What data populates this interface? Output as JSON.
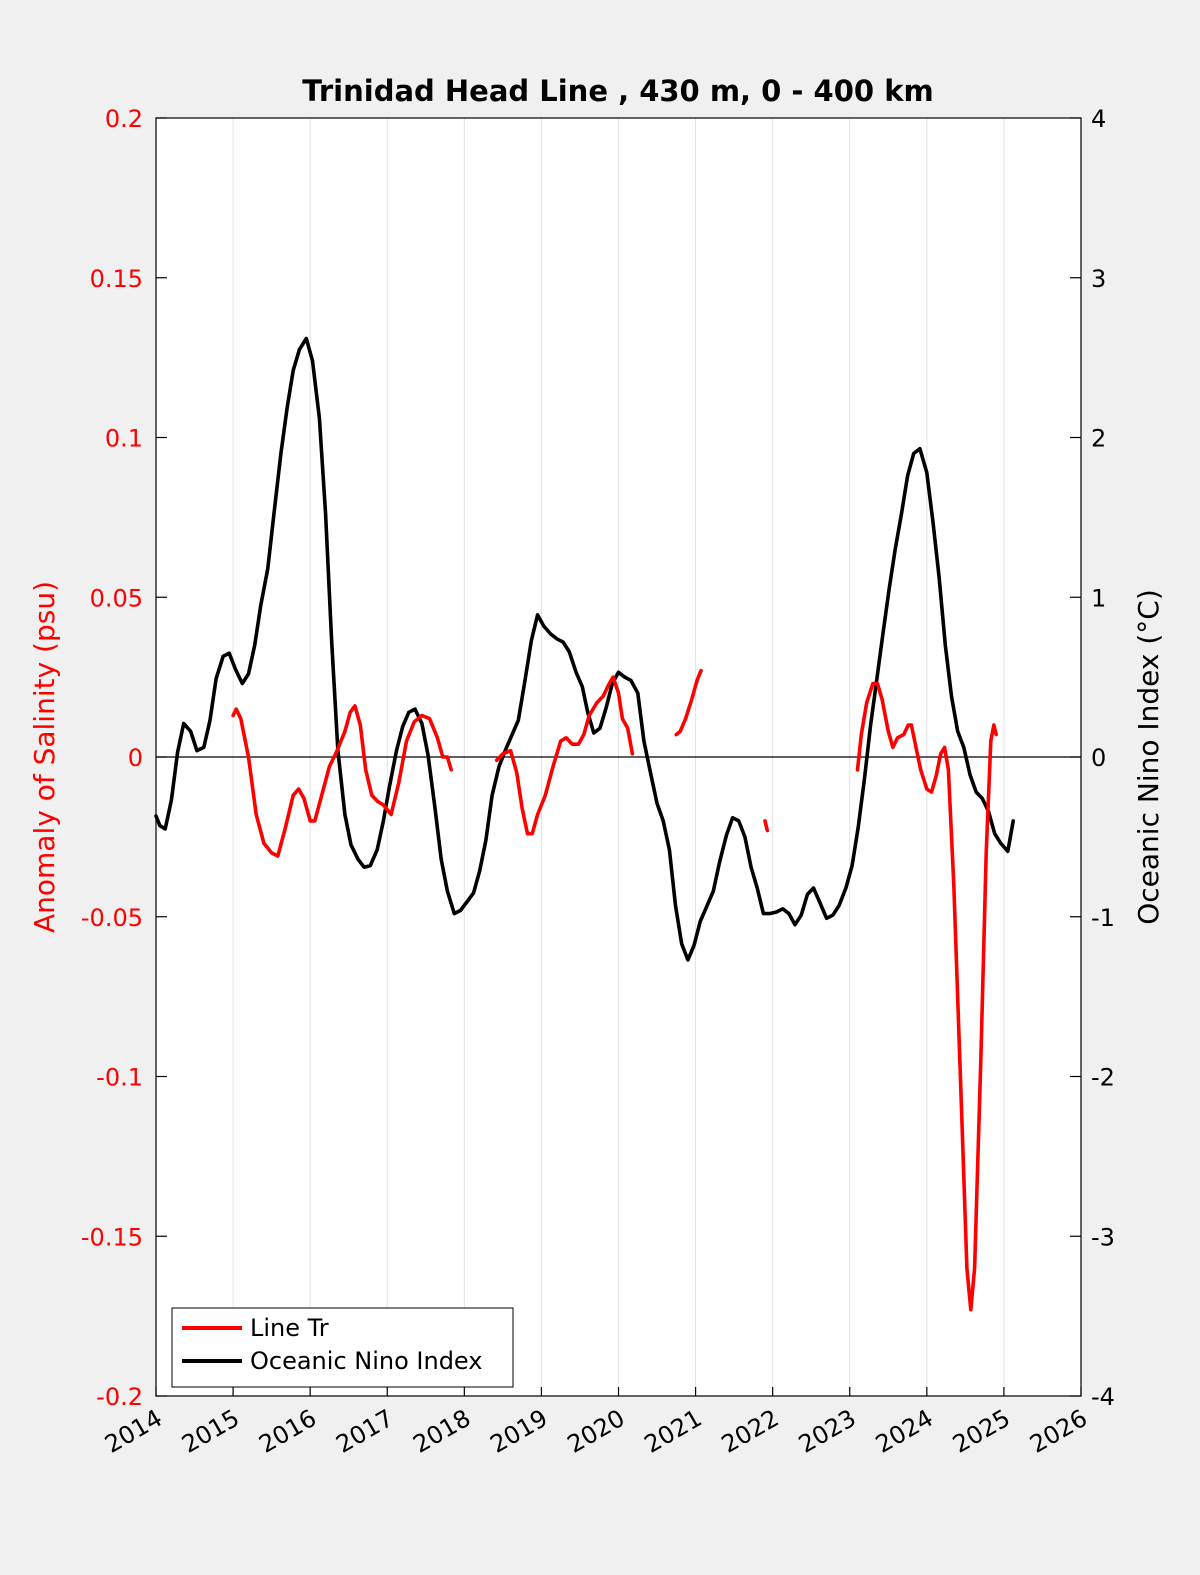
{
  "chart_data": {
    "type": "line",
    "title": "Trinidad Head Line , 430 m, 0 - 400 km",
    "xlabel": "",
    "ylabel_left": "Anomaly of Salinity (psu)",
    "ylabel_right": "Oceanic Nino Index (°C)",
    "xlim": [
      2014,
      2026
    ],
    "ylim_left": [
      -0.2,
      0.2
    ],
    "ylim_right": [
      -4,
      4
    ],
    "x_ticks": [
      2014,
      2015,
      2016,
      2017,
      2018,
      2019,
      2020,
      2021,
      2022,
      2023,
      2024,
      2025,
      2026
    ],
    "x_tick_labels": [
      "2014",
      "2015",
      "2016",
      "2017",
      "2018",
      "2019",
      "2020",
      "2021",
      "2022",
      "2023",
      "2024",
      "2025",
      "2026"
    ],
    "y_ticks_left": [
      0.2,
      0.15,
      0.1,
      0.05,
      0,
      -0.05,
      -0.1,
      -0.15,
      -0.2
    ],
    "y_tick_labels_left": [
      "0.2",
      "0.15",
      "0.1",
      "0.05",
      "0",
      "-0.05",
      "-0.1",
      "-0.15",
      "-0.2"
    ],
    "y_ticks_right": [
      4,
      3,
      2,
      1,
      0,
      -1,
      -2,
      -3,
      -4
    ],
    "y_tick_labels_right": [
      "4",
      "3",
      "2",
      "1",
      "0",
      "-1",
      "-2",
      "-3",
      "-4"
    ],
    "grid": "vertical",
    "zero_line": true,
    "legend_position": "bottom-left",
    "colors": {
      "salinity": "#ff0000",
      "oni": "#000000",
      "left_axis": "#ff0000",
      "right_axis": "#000000"
    },
    "series": [
      {
        "name": "Line Tr",
        "axis": "left",
        "color": "#ff0000",
        "segments": [
          [
            [
              2015.0,
              0.013
            ],
            [
              2015.04,
              0.015
            ],
            [
              2015.1,
              0.012
            ],
            [
              2015.2,
              0.0
            ],
            [
              2015.3,
              -0.018
            ],
            [
              2015.4,
              -0.027
            ],
            [
              2015.5,
              -0.03
            ],
            [
              2015.58,
              -0.031
            ],
            [
              2015.68,
              -0.022
            ],
            [
              2015.78,
              -0.012
            ],
            [
              2015.85,
              -0.01
            ],
            [
              2015.92,
              -0.013
            ],
            [
              2016.0,
              -0.02
            ],
            [
              2016.06,
              -0.02
            ],
            [
              2016.15,
              -0.012
            ],
            [
              2016.25,
              -0.003
            ],
            [
              2016.35,
              0.002
            ],
            [
              2016.45,
              0.008
            ],
            [
              2016.52,
              0.014
            ],
            [
              2016.58,
              0.016
            ],
            [
              2016.65,
              0.01
            ],
            [
              2016.72,
              -0.004
            ],
            [
              2016.8,
              -0.012
            ],
            [
              2016.88,
              -0.014
            ],
            [
              2016.95,
              -0.015
            ],
            [
              2017.05,
              -0.018
            ],
            [
              2017.15,
              -0.008
            ],
            [
              2017.25,
              0.005
            ],
            [
              2017.35,
              0.011
            ],
            [
              2017.45,
              0.013
            ],
            [
              2017.55,
              0.012
            ],
            [
              2017.65,
              0.006
            ],
            [
              2017.72,
              0.0
            ],
            [
              2017.78,
              0.0
            ],
            [
              2017.83,
              -0.004
            ]
          ],
          [
            [
              2018.42,
              -0.001
            ],
            [
              2018.5,
              0.001
            ],
            [
              2018.6,
              0.002
            ],
            [
              2018.68,
              -0.005
            ],
            [
              2018.75,
              -0.016
            ],
            [
              2018.82,
              -0.024
            ],
            [
              2018.88,
              -0.024
            ],
            [
              2018.95,
              -0.018
            ],
            [
              2019.05,
              -0.012
            ],
            [
              2019.15,
              -0.003
            ],
            [
              2019.25,
              0.005
            ],
            [
              2019.32,
              0.006
            ],
            [
              2019.4,
              0.004
            ],
            [
              2019.48,
              0.004
            ],
            [
              2019.55,
              0.007
            ],
            [
              2019.62,
              0.013
            ],
            [
              2019.72,
              0.017
            ],
            [
              2019.8,
              0.019
            ],
            [
              2019.88,
              0.023
            ],
            [
              2019.93,
              0.025
            ],
            [
              2020.0,
              0.02
            ],
            [
              2020.05,
              0.012
            ],
            [
              2020.12,
              0.009
            ],
            [
              2020.18,
              0.001
            ]
          ],
          [
            [
              2020.75,
              0.007
            ],
            [
              2020.8,
              0.008
            ],
            [
              2020.87,
              0.012
            ],
            [
              2020.95,
              0.018
            ],
            [
              2021.02,
              0.024
            ],
            [
              2021.07,
              0.027
            ]
          ],
          [
            [
              2021.9,
              -0.02
            ],
            [
              2021.93,
              -0.023
            ]
          ],
          [
            [
              2023.1,
              -0.004
            ],
            [
              2023.15,
              0.007
            ],
            [
              2023.22,
              0.017
            ],
            [
              2023.3,
              0.023
            ],
            [
              2023.36,
              0.023
            ],
            [
              2023.42,
              0.018
            ],
            [
              2023.5,
              0.008
            ],
            [
              2023.56,
              0.003
            ],
            [
              2023.62,
              0.006
            ],
            [
              2023.7,
              0.007
            ],
            [
              2023.76,
              0.01
            ],
            [
              2023.8,
              0.01
            ],
            [
              2023.86,
              0.003
            ],
            [
              2023.92,
              -0.004
            ],
            [
              2024.0,
              -0.01
            ],
            [
              2024.06,
              -0.011
            ],
            [
              2024.12,
              -0.006
            ],
            [
              2024.18,
              0.001
            ],
            [
              2024.23,
              0.003
            ],
            [
              2024.28,
              -0.004
            ],
            [
              2024.35,
              -0.04
            ],
            [
              2024.45,
              -0.11
            ],
            [
              2024.52,
              -0.16
            ],
            [
              2024.57,
              -0.173
            ],
            [
              2024.62,
              -0.16
            ],
            [
              2024.7,
              -0.095
            ],
            [
              2024.77,
              -0.03
            ],
            [
              2024.83,
              0.005
            ],
            [
              2024.87,
              0.01
            ],
            [
              2024.9,
              0.007
            ]
          ]
        ]
      },
      {
        "name": "Oceanic Nino Index",
        "axis": "right",
        "color": "#000000",
        "segments": [
          [
            [
              2014.0,
              -0.37
            ],
            [
              2014.05,
              -0.43
            ],
            [
              2014.12,
              -0.45
            ],
            [
              2014.2,
              -0.27
            ],
            [
              2014.28,
              0.03
            ],
            [
              2014.36,
              0.21
            ],
            [
              2014.45,
              0.16
            ],
            [
              2014.53,
              0.04
            ],
            [
              2014.62,
              0.06
            ],
            [
              2014.7,
              0.23
            ],
            [
              2014.78,
              0.49
            ],
            [
              2014.87,
              0.63
            ],
            [
              2014.95,
              0.65
            ],
            [
              2015.03,
              0.55
            ],
            [
              2015.12,
              0.46
            ],
            [
              2015.2,
              0.52
            ],
            [
              2015.28,
              0.7
            ],
            [
              2015.36,
              0.95
            ],
            [
              2015.45,
              1.18
            ],
            [
              2015.53,
              1.52
            ],
            [
              2015.62,
              1.9
            ],
            [
              2015.7,
              2.18
            ],
            [
              2015.78,
              2.42
            ],
            [
              2015.86,
              2.55
            ],
            [
              2015.95,
              2.62
            ],
            [
              2016.03,
              2.48
            ],
            [
              2016.12,
              2.12
            ],
            [
              2016.2,
              1.52
            ],
            [
              2016.28,
              0.72
            ],
            [
              2016.36,
              0.04
            ],
            [
              2016.45,
              -0.36
            ],
            [
              2016.53,
              -0.55
            ],
            [
              2016.62,
              -0.64
            ],
            [
              2016.7,
              -0.69
            ],
            [
              2016.78,
              -0.68
            ],
            [
              2016.87,
              -0.58
            ],
            [
              2016.95,
              -0.4
            ],
            [
              2017.03,
              -0.18
            ],
            [
              2017.12,
              0.04
            ],
            [
              2017.2,
              0.19
            ],
            [
              2017.28,
              0.28
            ],
            [
              2017.36,
              0.3
            ],
            [
              2017.45,
              0.21
            ],
            [
              2017.53,
              0.01
            ],
            [
              2017.62,
              -0.32
            ],
            [
              2017.7,
              -0.64
            ],
            [
              2017.78,
              -0.84
            ],
            [
              2017.87,
              -0.98
            ],
            [
              2017.95,
              -0.96
            ],
            [
              2018.03,
              -0.91
            ],
            [
              2018.12,
              -0.85
            ],
            [
              2018.2,
              -0.71
            ],
            [
              2018.28,
              -0.52
            ],
            [
              2018.36,
              -0.24
            ],
            [
              2018.45,
              -0.06
            ],
            [
              2018.53,
              0.04
            ],
            [
              2018.62,
              0.14
            ],
            [
              2018.7,
              0.23
            ],
            [
              2018.78,
              0.46
            ],
            [
              2018.87,
              0.73
            ],
            [
              2018.95,
              0.89
            ],
            [
              2019.03,
              0.82
            ],
            [
              2019.12,
              0.77
            ],
            [
              2019.2,
              0.74
            ],
            [
              2019.28,
              0.72
            ],
            [
              2019.36,
              0.66
            ],
            [
              2019.45,
              0.53
            ],
            [
              2019.53,
              0.44
            ],
            [
              2019.6,
              0.28
            ],
            [
              2019.68,
              0.15
            ],
            [
              2019.76,
              0.18
            ],
            [
              2019.84,
              0.31
            ],
            [
              2019.92,
              0.46
            ],
            [
              2020.0,
              0.53
            ],
            [
              2020.08,
              0.5
            ],
            [
              2020.16,
              0.48
            ],
            [
              2020.25,
              0.4
            ],
            [
              2020.33,
              0.1
            ],
            [
              2020.42,
              -0.11
            ],
            [
              2020.5,
              -0.29
            ],
            [
              2020.58,
              -0.4
            ],
            [
              2020.66,
              -0.58
            ],
            [
              2020.74,
              -0.93
            ],
            [
              2020.82,
              -1.17
            ],
            [
              2020.9,
              -1.27
            ],
            [
              2020.98,
              -1.18
            ],
            [
              2021.06,
              -1.03
            ],
            [
              2021.15,
              -0.93
            ],
            [
              2021.23,
              -0.84
            ],
            [
              2021.31,
              -0.66
            ],
            [
              2021.4,
              -0.49
            ],
            [
              2021.48,
              -0.38
            ],
            [
              2021.56,
              -0.4
            ],
            [
              2021.64,
              -0.5
            ],
            [
              2021.72,
              -0.69
            ],
            [
              2021.8,
              -0.82
            ],
            [
              2021.88,
              -0.98
            ],
            [
              2021.96,
              -0.98
            ],
            [
              2022.05,
              -0.97
            ],
            [
              2022.13,
              -0.95
            ],
            [
              2022.21,
              -0.98
            ],
            [
              2022.29,
              -1.05
            ],
            [
              2022.37,
              -0.99
            ],
            [
              2022.45,
              -0.86
            ],
            [
              2022.53,
              -0.82
            ],
            [
              2022.62,
              -0.92
            ],
            [
              2022.7,
              -1.01
            ],
            [
              2022.78,
              -0.99
            ],
            [
              2022.86,
              -0.93
            ],
            [
              2022.95,
              -0.82
            ],
            [
              2023.03,
              -0.68
            ],
            [
              2023.11,
              -0.44
            ],
            [
              2023.19,
              -0.14
            ],
            [
              2023.27,
              0.2
            ],
            [
              2023.35,
              0.48
            ],
            [
              2023.43,
              0.77
            ],
            [
              2023.51,
              1.05
            ],
            [
              2023.59,
              1.3
            ],
            [
              2023.67,
              1.52
            ],
            [
              2023.75,
              1.76
            ],
            [
              2023.83,
              1.9
            ],
            [
              2023.91,
              1.93
            ],
            [
              2024.0,
              1.78
            ],
            [
              2024.08,
              1.47
            ],
            [
              2024.16,
              1.12
            ],
            [
              2024.24,
              0.7
            ],
            [
              2024.32,
              0.38
            ],
            [
              2024.4,
              0.16
            ],
            [
              2024.48,
              0.06
            ],
            [
              2024.56,
              -0.11
            ],
            [
              2024.64,
              -0.22
            ],
            [
              2024.72,
              -0.26
            ],
            [
              2024.8,
              -0.34
            ],
            [
              2024.88,
              -0.48
            ],
            [
              2024.96,
              -0.54
            ],
            [
              2025.05,
              -0.59
            ],
            [
              2025.12,
              -0.4
            ]
          ]
        ]
      }
    ]
  },
  "legend": {
    "items": [
      "Line Tr",
      "Oceanic Nino Index"
    ]
  }
}
